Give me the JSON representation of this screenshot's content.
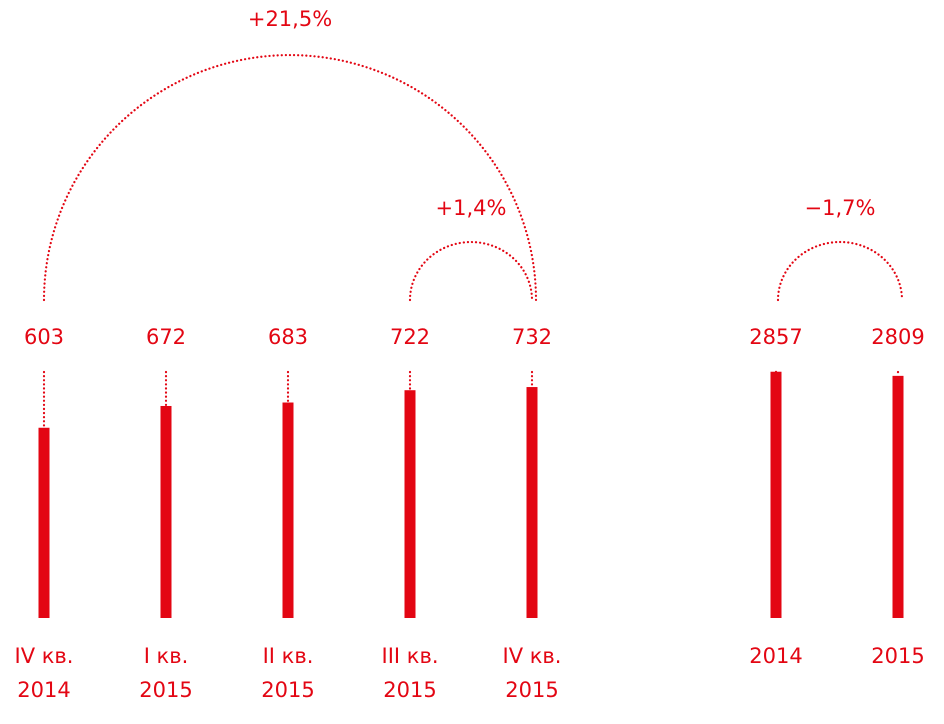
{
  "chart_data": [
    {
      "type": "bar",
      "categories": [
        "IV кв. 2014",
        "I кв. 2015",
        "II кв. 2015",
        "III кв. 2015",
        "IV кв. 2015"
      ],
      "values": [
        603,
        672,
        683,
        722,
        732
      ],
      "color": "#e30613",
      "annotations": [
        "+21,5%",
        "+1,4%"
      ]
    },
    {
      "type": "bar",
      "categories": [
        "2014",
        "2015"
      ],
      "values": [
        2857,
        2809
      ],
      "color": "#e30613",
      "annotations": [
        "−1,7%"
      ]
    }
  ]
}
